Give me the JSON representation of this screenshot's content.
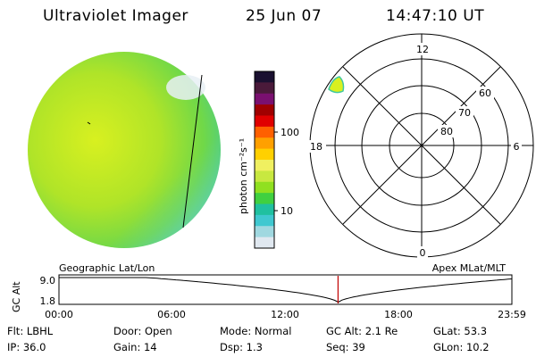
{
  "header": {
    "title": "Ultraviolet Imager",
    "date": "25 Jun 07",
    "time": "14:47:10 UT"
  },
  "colorbar": {
    "unit_label": "photon cm⁻²s⁻¹",
    "ticks": [
      "100",
      "10"
    ],
    "colors": [
      "#1a1030",
      "#4a1a3a",
      "#7a1070",
      "#a00000",
      "#e00000",
      "#ff6000",
      "#ffa000",
      "#ffd000",
      "#f0f060",
      "#c8e840",
      "#90e020",
      "#40d040",
      "#20c0a0",
      "#40c8d0",
      "#a0d8e0",
      "#e0e8f0"
    ]
  },
  "polar_plot": {
    "mlat_labels": [
      "60",
      "70",
      "80"
    ],
    "mlt_labels": [
      "12",
      "18",
      "6",
      "0"
    ]
  },
  "timeline": {
    "y_label": "GC Alt",
    "y_ticks": [
      "9.0",
      "1.8"
    ],
    "left_title": "Geographic Lat/Lon",
    "right_title": "Apex  MLat/MLT",
    "time_ticks": [
      "00:00",
      "06:00",
      "12:00",
      "18:00",
      "23:59"
    ],
    "current_time_fraction": 0.6162
  },
  "info_rows": [
    [
      "Flt: LBHL",
      "Door: Open",
      "Mode: Normal",
      "GC Alt: 2.1 Re",
      "GLat:  53.3"
    ],
    [
      "IP: 36.0",
      "Gain: 14",
      "Dsp:     1.3",
      "Seq: 39",
      "GLon:  10.2"
    ]
  ]
}
